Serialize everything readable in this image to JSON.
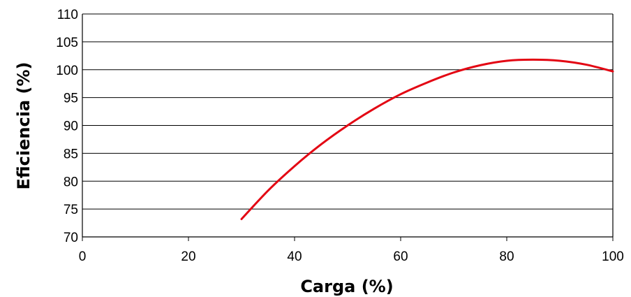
{
  "chart_data": {
    "type": "line",
    "title": "",
    "xlabel": "Carga (%)",
    "ylabel": "Eficiencia (%)",
    "xlim": [
      0,
      100
    ],
    "ylim": [
      70,
      110
    ],
    "x_ticks": [
      0,
      20,
      40,
      60,
      80,
      100
    ],
    "y_ticks": [
      70,
      75,
      80,
      85,
      90,
      95,
      100,
      105,
      110
    ],
    "y_tick_labels": [
      "70",
      "75",
      "80",
      "85",
      "90",
      "95",
      "100",
      "105",
      "110"
    ],
    "grid": "horizontal",
    "legend": "none",
    "series": [
      {
        "color": "#e30613",
        "x": [
          30,
          35,
          40,
          45,
          50,
          55,
          60,
          65,
          70,
          75,
          80,
          85,
          90,
          95,
          100
        ],
        "y": [
          73.2,
          78.3,
          82.7,
          86.6,
          90.0,
          93.0,
          95.6,
          97.7,
          99.5,
          100.8,
          101.6,
          101.8,
          101.6,
          100.9,
          99.7
        ]
      }
    ]
  }
}
